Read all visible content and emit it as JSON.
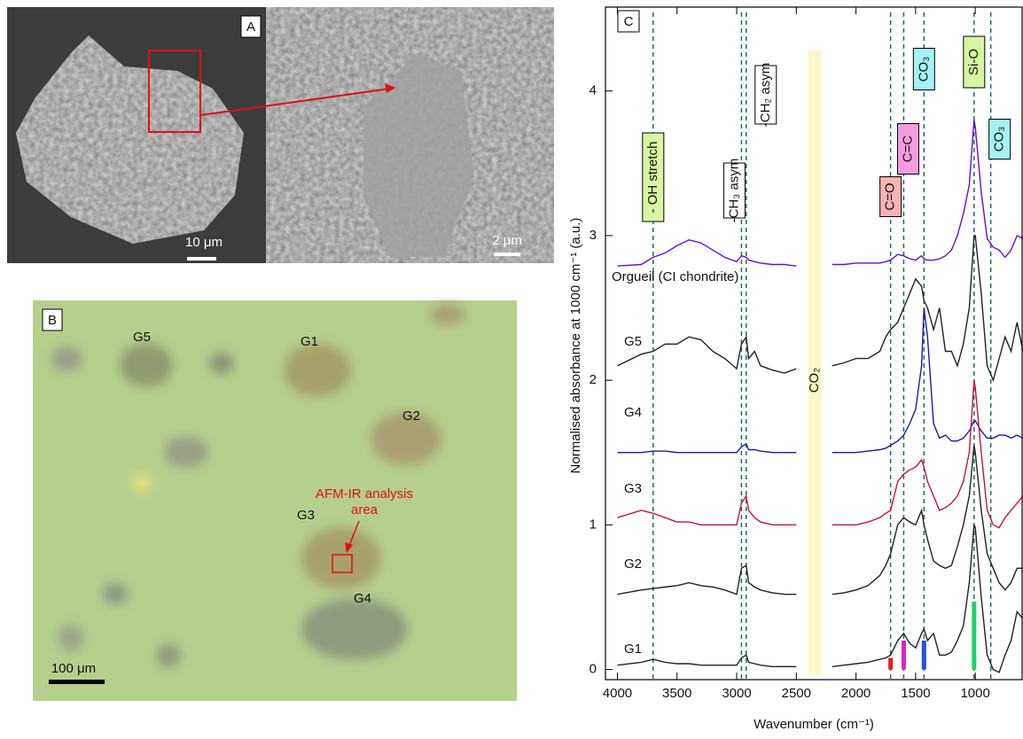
{
  "panel_a": {
    "letter": "A",
    "scale_left": "10 μm",
    "scale_right": "2 μm"
  },
  "panel_b": {
    "letter": "B",
    "grains": [
      "G5",
      "G1",
      "G2",
      "G3",
      "G4"
    ],
    "analysis_label": [
      "AFM-IR analysis",
      "area"
    ],
    "scale": "100 μm"
  },
  "chart_data": {
    "type": "line",
    "letter": "C",
    "x_label": "Wavenumber (cm⁻¹)",
    "y_label": "Normalised absorbance at 1000 cm⁻¹ (a.u.)",
    "xlim": [
      4100,
      600
    ],
    "ylim": [
      -0.07,
      4.58
    ],
    "xticks": [
      4000,
      3500,
      3000,
      2500,
      2000,
      1500,
      1000
    ],
    "yticks": [
      0,
      1,
      2,
      3,
      4
    ],
    "x": [
      4000,
      3800,
      3700,
      3600,
      3500,
      3400,
      3300,
      3200,
      3100,
      3000,
      2960,
      2920,
      2900,
      2850,
      2800,
      2700,
      2600,
      2500,
      2400,
      2300,
      2200,
      2100,
      2000,
      1900,
      1800,
      1750,
      1710,
      1650,
      1600,
      1550,
      1500,
      1450,
      1430,
      1400,
      1350,
      1300,
      1250,
      1200,
      1150,
      1100,
      1050,
      1010,
      1000,
      950,
      900,
      850,
      800,
      750,
      700,
      650,
      600
    ],
    "series": [
      {
        "name": "Orgueil (CI chondrite)",
        "color": "#6a0dd6",
        "values": [
          2.79,
          2.8,
          2.85,
          2.88,
          2.93,
          2.97,
          2.95,
          2.9,
          2.85,
          2.82,
          2.86,
          2.85,
          2.83,
          2.82,
          2.81,
          2.8,
          2.8,
          2.79,
          null,
          null,
          2.8,
          2.8,
          2.81,
          2.81,
          2.81,
          2.82,
          2.83,
          2.87,
          2.86,
          2.84,
          2.83,
          2.86,
          2.84,
          2.83,
          2.83,
          2.84,
          2.86,
          2.9,
          3.0,
          3.15,
          3.35,
          3.8,
          3.75,
          3.3,
          2.98,
          2.92,
          2.9,
          2.85,
          2.9,
          3.0,
          2.98
        ]
      },
      {
        "name": "G5",
        "color": "#222222",
        "values": [
          2.1,
          2.18,
          2.2,
          2.25,
          2.25,
          2.3,
          2.28,
          2.2,
          2.15,
          2.08,
          2.25,
          2.3,
          2.15,
          2.2,
          2.1,
          2.07,
          2.05,
          2.08,
          null,
          null,
          2.1,
          2.12,
          2.15,
          2.15,
          2.2,
          2.3,
          2.35,
          2.4,
          2.5,
          2.6,
          2.7,
          2.65,
          2.55,
          2.5,
          2.35,
          2.5,
          2.2,
          2.2,
          2.1,
          2.25,
          2.5,
          3.0,
          3.0,
          2.6,
          2.1,
          2.0,
          2.15,
          2.3,
          2.2,
          2.4,
          2.2
        ]
      },
      {
        "name": "G4",
        "color": "#1a1aa8",
        "values": [
          1.5,
          1.5,
          1.51,
          1.51,
          1.5,
          1.5,
          1.5,
          1.5,
          1.5,
          1.5,
          1.54,
          1.56,
          1.52,
          1.52,
          1.51,
          1.5,
          1.5,
          1.5,
          null,
          null,
          1.5,
          1.5,
          1.5,
          1.51,
          1.52,
          1.53,
          1.55,
          1.58,
          1.62,
          1.7,
          1.8,
          2.1,
          2.5,
          2.3,
          1.7,
          1.6,
          1.62,
          1.58,
          1.58,
          1.6,
          1.65,
          1.72,
          1.72,
          1.65,
          1.6,
          1.6,
          1.62,
          1.62,
          1.6,
          1.62,
          1.6
        ]
      },
      {
        "name": "G3",
        "color": "#c8104a",
        "values": [
          1.05,
          1.1,
          1.08,
          1.05,
          1.02,
          1.02,
          1.0,
          1.0,
          1.0,
          1.0,
          1.15,
          1.2,
          1.1,
          1.05,
          1.02,
          1.0,
          1.0,
          1.0,
          null,
          null,
          1.0,
          1.0,
          1.0,
          1.02,
          1.05,
          1.08,
          1.1,
          1.3,
          1.35,
          1.38,
          1.4,
          1.45,
          1.4,
          1.3,
          1.2,
          1.1,
          1.12,
          1.15,
          1.2,
          1.3,
          1.5,
          2.0,
          1.95,
          1.5,
          1.1,
          1.0,
          0.98,
          1.05,
          1.1,
          1.15,
          1.2
        ]
      },
      {
        "name": "G2",
        "color": "#222222",
        "values": [
          0.52,
          0.55,
          0.56,
          0.57,
          0.58,
          0.6,
          0.58,
          0.57,
          0.55,
          0.52,
          0.7,
          0.72,
          0.6,
          0.57,
          0.55,
          0.53,
          0.52,
          0.52,
          null,
          null,
          0.52,
          0.53,
          0.55,
          0.58,
          0.65,
          0.72,
          0.8,
          1.0,
          1.05,
          1.02,
          1.0,
          1.1,
          1.0,
          0.9,
          0.75,
          0.72,
          0.7,
          0.72,
          0.85,
          1.0,
          1.2,
          1.55,
          1.5,
          1.1,
          0.8,
          0.7,
          0.6,
          0.55,
          0.6,
          0.7,
          0.7
        ]
      },
      {
        "name": "G1",
        "color": "#222222",
        "values": [
          0.03,
          0.05,
          0.07,
          0.05,
          0.04,
          0.04,
          0.03,
          0.03,
          0.03,
          0.03,
          0.08,
          0.1,
          0.05,
          0.04,
          0.03,
          0.02,
          0.02,
          0.02,
          null,
          null,
          0.02,
          0.03,
          0.04,
          0.05,
          0.07,
          0.08,
          0.1,
          0.2,
          0.25,
          0.18,
          0.15,
          0.25,
          0.28,
          0.2,
          0.25,
          0.1,
          0.1,
          0.12,
          0.2,
          0.3,
          0.6,
          1.0,
          0.98,
          0.5,
          0.1,
          0.0,
          -0.02,
          0.1,
          0.2,
          0.4,
          0.35
        ]
      }
    ],
    "annotations": [
      {
        "text": "- OH stretch",
        "x": 3700,
        "color": "#d8f5a2"
      },
      {
        "text": "-CH₃ asym",
        "x": 2960,
        "color": "#ffffff"
      },
      {
        "text": "-CH₂ asym",
        "x": 2920,
        "color": "#ffffff"
      },
      {
        "text": "C=O",
        "x": 1710,
        "color": "#f7b3b3"
      },
      {
        "text": "C=C",
        "x": 1600,
        "color": "#f59be0"
      },
      {
        "text": "CO₃",
        "x": 1430,
        "color": "#a6f2f2"
      },
      {
        "text": "Si-O",
        "x": 1010,
        "color": "#d8f5a2"
      },
      {
        "text": "CO₃",
        "x": 870,
        "color": "#a6f2f2"
      }
    ],
    "band": {
      "label": "CO₂",
      "range": [
        2400,
        2290
      ],
      "color": "#fbf8c8"
    },
    "markers": [
      {
        "x": 1710,
        "value": 0.08,
        "color": "#e02020"
      },
      {
        "x": 1600,
        "value": 0.2,
        "color": "#e020c0"
      },
      {
        "x": 1430,
        "value": 0.2,
        "color": "#1f4fe0"
      },
      {
        "x": 1010,
        "value": 0.47,
        "color": "#1fcf6a"
      }
    ]
  }
}
